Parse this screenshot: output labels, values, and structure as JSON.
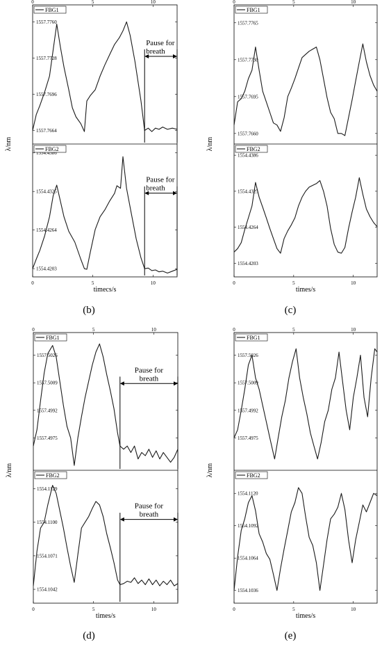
{
  "chart_data": [
    {
      "label": "(b)",
      "type": "line",
      "ylabel": "λ/nm",
      "xlabel": "timecs/s",
      "xlim": [
        0,
        12
      ],
      "xticks": [
        0,
        5,
        10
      ],
      "panels": [
        {
          "legend": "FBG1",
          "ylim": [
            1557.7652,
            1557.7775
          ],
          "yticks": [
            1557.7664,
            1557.7696,
            1557.7728,
            1557.776
          ],
          "annotation": "Pause for breath",
          "pause_start": 9.3,
          "pause_end": 12.0,
          "x": [
            0,
            0.3,
            0.6,
            1.0,
            1.4,
            1.7,
            2.0,
            2.3,
            2.6,
            3.0,
            3.3,
            3.6,
            4.0,
            4.3,
            4.5,
            4.8,
            5.2,
            5.6,
            6.0,
            6.4,
            6.8,
            7.2,
            7.5,
            7.8,
            8.1,
            8.5,
            9.0,
            9.3,
            9.6,
            9.9,
            10.2,
            10.5,
            10.8,
            11.2,
            11.6,
            12.0
          ],
          "y": [
            1557.7664,
            1557.7678,
            1557.7686,
            1557.7698,
            1557.7712,
            1557.7735,
            1557.7758,
            1557.7738,
            1557.772,
            1557.77,
            1557.7684,
            1557.7676,
            1557.767,
            1557.7663,
            1557.769,
            1557.7695,
            1557.77,
            1557.7712,
            1557.7722,
            1557.7731,
            1557.774,
            1557.7746,
            1557.7752,
            1557.776,
            1557.7748,
            1557.7725,
            1557.769,
            1557.7664,
            1557.7666,
            1557.7663,
            1557.7666,
            1557.7665,
            1557.7667,
            1557.7665,
            1557.7666,
            1557.7665
          ]
        },
        {
          "legend": "FBG2",
          "ylim": [
            1554.419,
            1554.44
          ],
          "yticks": [
            1554.4203,
            1554.4264,
            1554.4325,
            1554.4386
          ],
          "annotation": "Pause for breath",
          "pause_start": 9.3,
          "pause_end": 12.0,
          "x": [
            0,
            0.3,
            0.6,
            1.0,
            1.4,
            1.7,
            2.0,
            2.3,
            2.6,
            3.0,
            3.5,
            4.0,
            4.3,
            4.5,
            4.8,
            5.2,
            5.6,
            6.0,
            6.4,
            6.8,
            7.0,
            7.3,
            7.5,
            7.8,
            8.2,
            8.6,
            9.0,
            9.3,
            9.6,
            9.9,
            10.2,
            10.5,
            10.8,
            11.2,
            11.6,
            12.0
          ],
          "y": [
            1554.4203,
            1554.4218,
            1554.4232,
            1554.4255,
            1554.4285,
            1554.4318,
            1554.4335,
            1554.431,
            1554.4285,
            1554.4262,
            1554.4245,
            1554.4218,
            1554.4203,
            1554.4202,
            1554.423,
            1554.4265,
            1554.4285,
            1554.4296,
            1554.431,
            1554.4322,
            1554.4334,
            1554.433,
            1554.438,
            1554.433,
            1554.429,
            1554.425,
            1554.422,
            1554.4203,
            1554.4204,
            1554.42,
            1554.4201,
            1554.4198,
            1554.4199,
            1554.4196,
            1554.4199,
            1554.4202
          ]
        }
      ]
    },
    {
      "label": "(c)",
      "type": "line",
      "ylabel": "λ/nm",
      "xlabel": "times/s",
      "xlim": [
        0,
        12
      ],
      "xticks": [
        0,
        5,
        10
      ],
      "panels": [
        {
          "legend": "FBG1",
          "ylim": [
            1557.765,
            1557.7782
          ],
          "yticks": [
            1557.766,
            1557.7695,
            1557.773,
            1557.7765
          ],
          "x": [
            0,
            0.3,
            0.6,
            0.9,
            1.2,
            1.5,
            1.8,
            2.1,
            2.4,
            2.7,
            3.0,
            3.3,
            3.6,
            3.9,
            4.2,
            4.5,
            4.8,
            5.1,
            5.4,
            5.7,
            6.0,
            6.3,
            6.6,
            6.9,
            7.2,
            7.5,
            7.8,
            8.1,
            8.4,
            8.7,
            9.0,
            9.3,
            9.6,
            9.9,
            10.2,
            10.5,
            10.8,
            11.1,
            11.4,
            11.7,
            12.0
          ],
          "y": [
            1557.7668,
            1557.769,
            1557.7693,
            1557.77,
            1557.7712,
            1557.772,
            1557.7742,
            1557.772,
            1557.77,
            1557.769,
            1557.768,
            1557.767,
            1557.7668,
            1557.7662,
            1557.7675,
            1557.7695,
            1557.7703,
            1557.7712,
            1557.7722,
            1557.7732,
            1557.7735,
            1557.7738,
            1557.774,
            1557.7742,
            1557.773,
            1557.7712,
            1557.7694,
            1557.768,
            1557.7674,
            1557.766,
            1557.766,
            1557.7658,
            1557.7675,
            1557.7692,
            1557.771,
            1557.7728,
            1557.7745,
            1557.7728,
            1557.7715,
            1557.7706,
            1557.77
          ]
        },
        {
          "legend": "FBG2",
          "ylim": [
            1554.418,
            1554.4405
          ],
          "yticks": [
            1554.4203,
            1554.4264,
            1554.4325,
            1554.4386
          ],
          "x": [
            0,
            0.3,
            0.6,
            0.9,
            1.2,
            1.5,
            1.8,
            2.1,
            2.4,
            2.7,
            3.0,
            3.3,
            3.6,
            3.9,
            4.2,
            4.5,
            4.8,
            5.1,
            5.4,
            5.7,
            6.0,
            6.3,
            6.6,
            6.9,
            7.2,
            7.5,
            7.8,
            8.1,
            8.4,
            8.7,
            9.0,
            9.3,
            9.6,
            9.9,
            10.2,
            10.5,
            10.8,
            11.1,
            11.4,
            11.7,
            12.0
          ],
          "y": [
            1554.4222,
            1554.4228,
            1554.4238,
            1554.426,
            1554.428,
            1554.43,
            1554.434,
            1554.4315,
            1554.4298,
            1554.428,
            1554.4262,
            1554.4245,
            1554.4228,
            1554.422,
            1554.4245,
            1554.4258,
            1554.4268,
            1554.428,
            1554.43,
            1554.4315,
            1554.4325,
            1554.4332,
            1554.4335,
            1554.4338,
            1554.4343,
            1554.4325,
            1554.43,
            1554.4262,
            1554.4235,
            1554.4222,
            1554.422,
            1554.423,
            1554.4262,
            1554.429,
            1554.4315,
            1554.4348,
            1554.432,
            1554.4295,
            1554.4282,
            1554.4272,
            1554.4265
          ]
        }
      ]
    },
    {
      "label": "(d)",
      "type": "line",
      "ylabel": "λ/nm",
      "xlabel": "times/s",
      "xlim": [
        0,
        12
      ],
      "xticks": [
        0,
        5,
        10
      ],
      "panels": [
        {
          "legend": "FBG1",
          "ylim": [
            1557.4955,
            1557.504
          ],
          "yticks": [
            1557.4975,
            1557.4992,
            1557.5009,
            1557.5026
          ],
          "annotation": "Pause for breath",
          "pause_start": 7.2,
          "pause_end": 12.0,
          "x": [
            0,
            0.3,
            0.6,
            0.9,
            1.2,
            1.6,
            1.9,
            2.2,
            2.5,
            2.8,
            3.1,
            3.4,
            3.7,
            4.0,
            4.3,
            4.6,
            4.9,
            5.2,
            5.5,
            5.8,
            6.1,
            6.4,
            6.7,
            7.0,
            7.2,
            7.5,
            7.8,
            8.1,
            8.4,
            8.7,
            9.0,
            9.3,
            9.6,
            9.9,
            10.2,
            10.5,
            10.8,
            11.1,
            11.4,
            11.7,
            12.0
          ],
          "y": [
            1557.497,
            1557.498,
            1557.4998,
            1557.5015,
            1557.5027,
            1557.5032,
            1557.5025,
            1557.501,
            1557.4995,
            1557.4982,
            1557.4975,
            1557.4958,
            1557.4975,
            1557.4988,
            1557.5,
            1557.501,
            1557.502,
            1557.5028,
            1557.5033,
            1557.5025,
            1557.5014,
            1557.5004,
            1557.4993,
            1557.4978,
            1557.497,
            1557.4968,
            1557.497,
            1557.4966,
            1557.497,
            1557.4962,
            1557.4966,
            1557.4964,
            1557.4968,
            1557.4963,
            1557.4967,
            1557.4962,
            1557.4966,
            1557.4963,
            1557.496,
            1557.4963,
            1557.4968
          ]
        },
        {
          "legend": "FBG2",
          "ylim": [
            1554.103,
            1554.1145
          ],
          "yticks": [
            1554.1042,
            1554.1071,
            1554.11,
            1554.1129
          ],
          "annotation": "Pause for breath",
          "pause_start": 7.2,
          "pause_end": 12.0,
          "x": [
            0,
            0.3,
            0.6,
            0.9,
            1.2,
            1.6,
            1.9,
            2.2,
            2.5,
            2.8,
            3.1,
            3.4,
            3.7,
            4.0,
            4.3,
            4.6,
            4.9,
            5.2,
            5.5,
            5.8,
            6.1,
            6.4,
            6.7,
            7.0,
            7.2,
            7.5,
            7.8,
            8.1,
            8.4,
            8.7,
            9.0,
            9.3,
            9.6,
            9.9,
            10.2,
            10.5,
            10.8,
            11.1,
            11.4,
            11.7,
            12.0
          ],
          "y": [
            1554.1045,
            1554.1075,
            1554.1095,
            1554.11,
            1554.1115,
            1554.1132,
            1554.1125,
            1554.111,
            1554.1095,
            1554.1078,
            1554.1062,
            1554.1048,
            1554.1072,
            1554.1095,
            1554.11,
            1554.1105,
            1554.1112,
            1554.1118,
            1554.1115,
            1554.1105,
            1554.109,
            1554.1078,
            1554.1065,
            1554.105,
            1554.1046,
            1554.1047,
            1554.1049,
            1554.1048,
            1554.1052,
            1554.1047,
            1554.105,
            1554.1046,
            1554.1051,
            1554.1046,
            1554.105,
            1554.1045,
            1554.1049,
            1554.1046,
            1554.105,
            1554.1045,
            1554.1047
          ]
        }
      ]
    },
    {
      "label": "(e)",
      "type": "line",
      "ylabel": "λ/nm",
      "xlabel": "times/s",
      "xlim": [
        0,
        12
      ],
      "xticks": [
        0,
        5,
        10
      ],
      "panels": [
        {
          "legend": "FBG1",
          "ylim": [
            1557.4955,
            1557.504
          ],
          "yticks": [
            1557.4975,
            1557.4992,
            1557.5009,
            1557.5026
          ],
          "x": [
            0,
            0.3,
            0.6,
            0.9,
            1.2,
            1.5,
            1.8,
            2.1,
            2.4,
            2.7,
            3.0,
            3.4,
            3.7,
            4.0,
            4.3,
            4.6,
            4.9,
            5.2,
            5.5,
            5.8,
            6.1,
            6.4,
            6.7,
            7.0,
            7.3,
            7.6,
            7.9,
            8.2,
            8.5,
            8.8,
            9.1,
            9.4,
            9.7,
            10.0,
            10.3,
            10.6,
            10.9,
            11.2,
            11.5,
            11.8,
            12.0
          ],
          "y": [
            1557.4975,
            1557.498,
            1557.4992,
            1557.5005,
            1557.502,
            1557.5026,
            1557.5012,
            1557.5005,
            1557.4995,
            1557.4985,
            1557.4975,
            1557.4962,
            1557.4975,
            1557.4988,
            1557.4998,
            1557.5012,
            1557.5022,
            1557.503,
            1557.5012,
            1557.5,
            1557.499,
            1557.4978,
            1557.497,
            1557.4962,
            1557.4972,
            1557.4985,
            1557.4992,
            1557.5005,
            1557.5012,
            1557.5028,
            1557.501,
            1557.4992,
            1557.498,
            1557.5,
            1557.5012,
            1557.5026,
            1557.5,
            1557.4988,
            1557.5012,
            1557.503,
            1557.5028
          ]
        },
        {
          "legend": "FBG2",
          "ylim": [
            1554.1025,
            1554.114
          ],
          "yticks": [
            1554.1036,
            1554.1064,
            1554.1092,
            1554.112
          ],
          "x": [
            0,
            0.3,
            0.6,
            0.9,
            1.2,
            1.5,
            1.8,
            2.1,
            2.4,
            2.7,
            3.0,
            3.3,
            3.6,
            3.9,
            4.2,
            4.5,
            4.8,
            5.1,
            5.4,
            5.7,
            6.0,
            6.3,
            6.6,
            6.9,
            7.2,
            7.5,
            7.8,
            8.1,
            8.4,
            8.7,
            9.0,
            9.3,
            9.6,
            9.9,
            10.2,
            10.5,
            10.8,
            11.1,
            11.4,
            11.7,
            12.0
          ],
          "y": [
            1554.1036,
            1554.1065,
            1554.1088,
            1554.1098,
            1554.1112,
            1554.1118,
            1554.1105,
            1554.1085,
            1554.1078,
            1554.1068,
            1554.1063,
            1554.105,
            1554.1036,
            1554.1055,
            1554.1072,
            1554.1088,
            1554.1104,
            1554.1112,
            1554.1125,
            1554.112,
            1554.11,
            1554.1082,
            1554.1075,
            1554.106,
            1554.1036,
            1554.1058,
            1554.108,
            1554.1098,
            1554.1102,
            1554.1108,
            1554.112,
            1554.1106,
            1554.108,
            1554.106,
            1554.108,
            1554.1095,
            1554.111,
            1554.1104,
            1554.1112,
            1554.112,
            1554.1118
          ]
        }
      ]
    }
  ]
}
